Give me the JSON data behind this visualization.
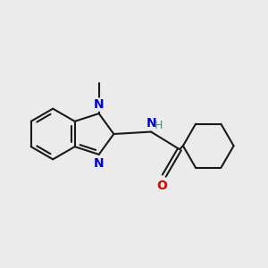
{
  "bg_color": "#ebebeb",
  "bond_color": "#1a1a1a",
  "n_color": "#0000dd",
  "o_color": "#dd0000",
  "h_color": "#4a9090",
  "line_width": 1.5,
  "font_size_n": 10,
  "font_size_o": 10,
  "font_size_h": 9,
  "figsize": [
    3.0,
    3.0
  ],
  "dpi": 100,
  "xlim": [
    -2.5,
    3.5
  ],
  "ylim": [
    -2.0,
    2.0
  ]
}
